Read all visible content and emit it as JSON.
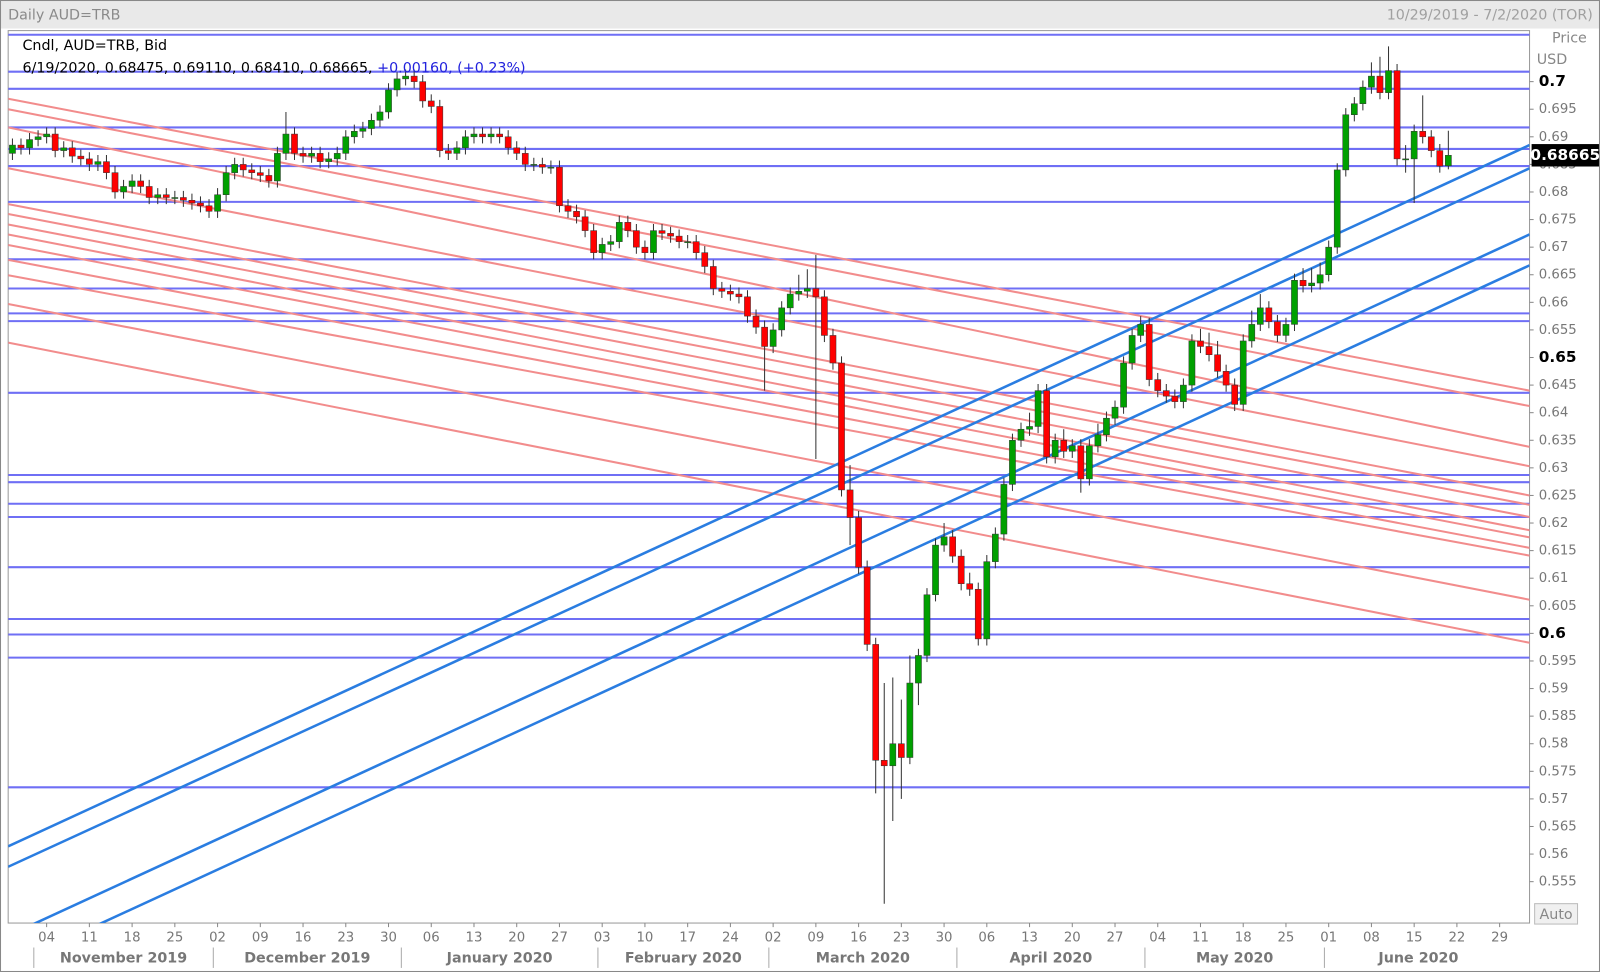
{
  "chart_data": {
    "type": "candlestick",
    "title": "Daily AUD=TRB",
    "date_range": "10/29/2019 - 7/2/2020 (TOR)",
    "legend_title": "Cndl, AUD=TRB, Bid",
    "legend_values": "6/19/2020, 0.68475, 0.69110, 0.68410, 0.68665,",
    "legend_change": "+0.00160, (+0.23%)",
    "axis_title": "Price",
    "axis_unit": "USD",
    "scale_mode": "Auto",
    "up_color": "#00a000",
    "down_color": "#ff0000",
    "x": [
      "2019-10-29",
      "2019-10-30",
      "2019-10-31",
      "2019-11-01",
      "2019-11-04",
      "2019-11-05",
      "2019-11-06",
      "2019-11-07",
      "2019-11-08",
      "2019-11-11",
      "2019-11-12",
      "2019-11-13",
      "2019-11-14",
      "2019-11-15",
      "2019-11-18",
      "2019-11-19",
      "2019-11-20",
      "2019-11-21",
      "2019-11-22",
      "2019-11-25",
      "2019-11-26",
      "2019-11-27",
      "2019-11-28",
      "2019-11-29",
      "2019-12-02",
      "2019-12-03",
      "2019-12-04",
      "2019-12-05",
      "2019-12-06",
      "2019-12-09",
      "2019-12-10",
      "2019-12-11",
      "2019-12-12",
      "2019-12-13",
      "2019-12-16",
      "2019-12-17",
      "2019-12-18",
      "2019-12-19",
      "2019-12-20",
      "2019-12-23",
      "2019-12-24",
      "2019-12-25",
      "2019-12-26",
      "2019-12-27",
      "2019-12-30",
      "2019-12-31",
      "2020-01-01",
      "2020-01-02",
      "2020-01-03",
      "2020-01-06",
      "2020-01-07",
      "2020-01-08",
      "2020-01-09",
      "2020-01-10",
      "2020-01-13",
      "2020-01-14",
      "2020-01-15",
      "2020-01-16",
      "2020-01-17",
      "2020-01-20",
      "2020-01-21",
      "2020-01-22",
      "2020-01-23",
      "2020-01-24",
      "2020-01-27",
      "2020-01-28",
      "2020-01-29",
      "2020-01-30",
      "2020-01-31",
      "2020-02-03",
      "2020-02-04",
      "2020-02-05",
      "2020-02-06",
      "2020-02-07",
      "2020-02-10",
      "2020-02-11",
      "2020-02-12",
      "2020-02-13",
      "2020-02-14",
      "2020-02-17",
      "2020-02-18",
      "2020-02-19",
      "2020-02-20",
      "2020-02-21",
      "2020-02-24",
      "2020-02-25",
      "2020-02-26",
      "2020-02-27",
      "2020-02-28",
      "2020-03-02",
      "2020-03-03",
      "2020-03-04",
      "2020-03-05",
      "2020-03-06",
      "2020-03-09",
      "2020-03-10",
      "2020-03-11",
      "2020-03-12",
      "2020-03-13",
      "2020-03-16",
      "2020-03-17",
      "2020-03-18",
      "2020-03-19",
      "2020-03-20",
      "2020-03-23",
      "2020-03-24",
      "2020-03-25",
      "2020-03-26",
      "2020-03-27",
      "2020-03-30",
      "2020-03-31",
      "2020-04-01",
      "2020-04-02",
      "2020-04-03",
      "2020-04-06",
      "2020-04-07",
      "2020-04-08",
      "2020-04-09",
      "2020-04-10",
      "2020-04-13",
      "2020-04-14",
      "2020-04-15",
      "2020-04-16",
      "2020-04-17",
      "2020-04-20",
      "2020-04-21",
      "2020-04-22",
      "2020-04-23",
      "2020-04-24",
      "2020-04-27",
      "2020-04-28",
      "2020-04-29",
      "2020-04-30",
      "2020-05-01",
      "2020-05-04",
      "2020-05-05",
      "2020-05-06",
      "2020-05-07",
      "2020-05-08",
      "2020-05-11",
      "2020-05-12",
      "2020-05-13",
      "2020-05-14",
      "2020-05-15",
      "2020-05-18",
      "2020-05-19",
      "2020-05-20",
      "2020-05-21",
      "2020-05-22",
      "2020-05-25",
      "2020-05-26",
      "2020-05-27",
      "2020-05-28",
      "2020-05-29",
      "2020-06-01",
      "2020-06-02",
      "2020-06-03",
      "2020-06-04",
      "2020-06-05",
      "2020-06-08",
      "2020-06-09",
      "2020-06-10",
      "2020-06-11",
      "2020-06-12",
      "2020-06-15",
      "2020-06-16",
      "2020-06-17",
      "2020-06-18",
      "2020-06-19"
    ],
    "open": [
      0.687,
      0.6885,
      0.688,
      0.6895,
      0.69,
      0.6905,
      0.6875,
      0.688,
      0.6865,
      0.686,
      0.685,
      0.6855,
      0.6835,
      0.68,
      0.681,
      0.682,
      0.681,
      0.679,
      0.6795,
      0.679,
      0.679,
      0.6785,
      0.678,
      0.6775,
      0.6765,
      0.6795,
      0.6835,
      0.685,
      0.684,
      0.6835,
      0.683,
      0.682,
      0.687,
      0.6905,
      0.687,
      0.6865,
      0.687,
      0.6855,
      0.686,
      0.687,
      0.69,
      0.691,
      0.6915,
      0.693,
      0.6945,
      0.6985,
      0.7005,
      0.701,
      0.7,
      0.6965,
      0.6955,
      0.6875,
      0.687,
      0.688,
      0.69,
      0.6905,
      0.69,
      0.6905,
      0.69,
      0.688,
      0.687,
      0.685,
      0.685,
      0.6845,
      0.6845,
      0.6775,
      0.6765,
      0.6755,
      0.673,
      0.669,
      0.6705,
      0.671,
      0.6745,
      0.673,
      0.67,
      0.669,
      0.673,
      0.6725,
      0.672,
      0.671,
      0.671,
      0.669,
      0.6665,
      0.6625,
      0.662,
      0.6615,
      0.661,
      0.6575,
      0.6555,
      0.652,
      0.655,
      0.659,
      0.6615,
      0.662,
      0.6625,
      0.661,
      0.654,
      0.649,
      0.626,
      0.621,
      0.612,
      0.598,
      0.577,
      0.576,
      0.58,
      0.5775,
      0.591,
      0.596,
      0.607,
      0.616,
      0.6175,
      0.614,
      0.609,
      0.608,
      0.599,
      0.613,
      0.618,
      0.627,
      0.635,
      0.637,
      0.6375,
      0.644,
      0.632,
      0.635,
      0.633,
      0.634,
      0.628,
      0.634,
      0.636,
      0.639,
      0.641,
      0.649,
      0.654,
      0.656,
      0.646,
      0.644,
      0.643,
      0.642,
      0.645,
      0.653,
      0.652,
      0.6505,
      0.6475,
      0.645,
      0.6415,
      0.653,
      0.656,
      0.659,
      0.6565,
      0.654,
      0.656,
      0.664,
      0.663,
      0.6635,
      0.665,
      0.67,
      0.684,
      0.694,
      0.696,
      0.699,
      0.701,
      0.698,
      0.702,
      0.686,
      0.686,
      0.691,
      0.69,
      0.6875,
      0.68475
    ],
    "high": [
      0.6897,
      0.6897,
      0.6907,
      0.6912,
      0.6917,
      0.6917,
      0.6892,
      0.6892,
      0.6877,
      0.6872,
      0.6867,
      0.6867,
      0.6847,
      0.6822,
      0.6832,
      0.6832,
      0.6822,
      0.6807,
      0.6807,
      0.6802,
      0.6802,
      0.6797,
      0.6792,
      0.6787,
      0.6807,
      0.6847,
      0.6862,
      0.6862,
      0.6852,
      0.6847,
      0.6842,
      0.6882,
      0.6945,
      0.6917,
      0.6882,
      0.6882,
      0.6882,
      0.6872,
      0.6882,
      0.6912,
      0.6922,
      0.6927,
      0.6942,
      0.6957,
      0.6997,
      0.7017,
      0.7022,
      0.7022,
      0.7012,
      0.6977,
      0.6967,
      0.6887,
      0.6892,
      0.6912,
      0.6917,
      0.6917,
      0.6917,
      0.6917,
      0.6912,
      0.6892,
      0.6882,
      0.6862,
      0.6862,
      0.6857,
      0.6857,
      0.6787,
      0.6777,
      0.6767,
      0.6742,
      0.6717,
      0.6722,
      0.6757,
      0.6757,
      0.6742,
      0.6712,
      0.6742,
      0.6742,
      0.6737,
      0.6732,
      0.6722,
      0.6722,
      0.6702,
      0.6677,
      0.6637,
      0.6632,
      0.6627,
      0.6622,
      0.6587,
      0.6567,
      0.6562,
      0.6602,
      0.6627,
      0.665,
      0.666,
      0.6686,
      0.6622,
      0.6552,
      0.6502,
      0.6305,
      0.6222,
      0.6132,
      0.5992,
      0.591,
      0.592,
      0.588,
      0.596,
      0.5972,
      0.6082,
      0.6172,
      0.62,
      0.6187,
      0.6152,
      0.611,
      0.6092,
      0.6142,
      0.6192,
      0.6282,
      0.6362,
      0.6382,
      0.64,
      0.6452,
      0.6452,
      0.6362,
      0.637,
      0.6352,
      0.6352,
      0.6352,
      0.638,
      0.6402,
      0.6422,
      0.6502,
      0.6552,
      0.6575,
      0.6572,
      0.6472,
      0.6452,
      0.6442,
      0.6462,
      0.6542,
      0.6552,
      0.6545,
      0.653,
      0.6487,
      0.6462,
      0.6542,
      0.6585,
      0.6615,
      0.6602,
      0.6577,
      0.6572,
      0.6652,
      0.6662,
      0.6662,
      0.6672,
      0.6712,
      0.6852,
      0.6952,
      0.6972,
      0.7002,
      0.7035,
      0.7045,
      0.7064,
      0.7032,
      0.6885,
      0.6922,
      0.6975,
      0.6912,
      0.6887,
      0.6911
    ],
    "low": [
      0.6858,
      0.6868,
      0.6868,
      0.6883,
      0.6888,
      0.6863,
      0.6863,
      0.6853,
      0.6848,
      0.6838,
      0.6838,
      0.6823,
      0.6788,
      0.6788,
      0.6798,
      0.6798,
      0.6778,
      0.6778,
      0.6778,
      0.6778,
      0.6773,
      0.6768,
      0.6763,
      0.6753,
      0.6753,
      0.6783,
      0.6823,
      0.6828,
      0.6823,
      0.6818,
      0.6808,
      0.6808,
      0.6858,
      0.6858,
      0.6853,
      0.6853,
      0.6843,
      0.6843,
      0.6848,
      0.6858,
      0.6888,
      0.6898,
      0.6903,
      0.6918,
      0.6933,
      0.6973,
      0.6993,
      0.6988,
      0.6953,
      0.6943,
      0.6863,
      0.6858,
      0.6858,
      0.6868,
      0.6888,
      0.6888,
      0.6888,
      0.6888,
      0.6868,
      0.6858,
      0.6838,
      0.6838,
      0.6833,
      0.6833,
      0.6763,
      0.6753,
      0.6743,
      0.6718,
      0.6678,
      0.6678,
      0.6693,
      0.6698,
      0.6718,
      0.6688,
      0.6678,
      0.6678,
      0.6713,
      0.6708,
      0.6698,
      0.6698,
      0.6678,
      0.6653,
      0.6613,
      0.6608,
      0.6603,
      0.6598,
      0.6563,
      0.6543,
      0.644,
      0.6508,
      0.6538,
      0.6578,
      0.6603,
      0.6608,
      0.6316,
      0.6528,
      0.6478,
      0.6248,
      0.616,
      0.6108,
      0.5968,
      0.571,
      0.551,
      0.566,
      0.57,
      0.5763,
      0.587,
      0.5948,
      0.6058,
      0.6148,
      0.6128,
      0.6078,
      0.6068,
      0.5978,
      0.5978,
      0.6118,
      0.6168,
      0.6258,
      0.6338,
      0.6358,
      0.6363,
      0.6308,
      0.6308,
      0.6318,
      0.6318,
      0.6255,
      0.6268,
      0.6328,
      0.6348,
      0.6378,
      0.6398,
      0.6478,
      0.6528,
      0.6448,
      0.6428,
      0.6418,
      0.6408,
      0.6408,
      0.6438,
      0.6508,
      0.6493,
      0.6463,
      0.6438,
      0.6403,
      0.6403,
      0.6518,
      0.6548,
      0.6553,
      0.6528,
      0.6528,
      0.6548,
      0.6618,
      0.6618,
      0.6623,
      0.6638,
      0.6688,
      0.6828,
      0.6928,
      0.6948,
      0.6978,
      0.6968,
      0.6968,
      0.6848,
      0.6835,
      0.678,
      0.6888,
      0.6863,
      0.6835,
      0.6841
    ],
    "close": [
      0.6885,
      0.688,
      0.6895,
      0.69,
      0.6905,
      0.6875,
      0.688,
      0.6865,
      0.686,
      0.685,
      0.6855,
      0.6835,
      0.68,
      0.681,
      0.682,
      0.681,
      0.679,
      0.6795,
      0.679,
      0.679,
      0.6785,
      0.678,
      0.6775,
      0.6765,
      0.6795,
      0.6835,
      0.685,
      0.684,
      0.6835,
      0.683,
      0.682,
      0.687,
      0.6905,
      0.687,
      0.6865,
      0.687,
      0.6855,
      0.686,
      0.687,
      0.69,
      0.691,
      0.6915,
      0.693,
      0.6945,
      0.6985,
      0.7005,
      0.701,
      0.7,
      0.6965,
      0.6955,
      0.6875,
      0.687,
      0.688,
      0.69,
      0.6905,
      0.69,
      0.6905,
      0.69,
      0.688,
      0.687,
      0.685,
      0.685,
      0.6845,
      0.6845,
      0.6775,
      0.6765,
      0.6755,
      0.673,
      0.669,
      0.6705,
      0.671,
      0.6745,
      0.673,
      0.67,
      0.669,
      0.673,
      0.6725,
      0.672,
      0.671,
      0.671,
      0.669,
      0.6665,
      0.6625,
      0.662,
      0.6615,
      0.661,
      0.6575,
      0.6555,
      0.652,
      0.655,
      0.659,
      0.6615,
      0.662,
      0.6625,
      0.661,
      0.654,
      0.649,
      0.626,
      0.621,
      0.612,
      0.598,
      0.577,
      0.576,
      0.58,
      0.5775,
      0.591,
      0.596,
      0.607,
      0.616,
      0.6175,
      0.614,
      0.609,
      0.608,
      0.599,
      0.613,
      0.618,
      0.627,
      0.635,
      0.637,
      0.6375,
      0.644,
      0.632,
      0.635,
      0.633,
      0.634,
      0.628,
      0.634,
      0.636,
      0.639,
      0.641,
      0.649,
      0.654,
      0.656,
      0.646,
      0.644,
      0.643,
      0.642,
      0.645,
      0.653,
      0.652,
      0.6505,
      0.6475,
      0.645,
      0.6415,
      0.653,
      0.656,
      0.659,
      0.6565,
      0.654,
      0.656,
      0.664,
      0.663,
      0.6635,
      0.665,
      0.67,
      0.684,
      0.694,
      0.696,
      0.699,
      0.701,
      0.698,
      0.702,
      0.686,
      0.686,
      0.691,
      0.69,
      0.6875,
      0.6847,
      0.68665
    ],
    "xlim": [
      "2019-10-29",
      "2020-07-02"
    ],
    "xticks": [
      {
        "value": "2019-11-04",
        "label": "04"
      },
      {
        "value": "2019-11-11",
        "label": "11"
      },
      {
        "value": "2019-11-18",
        "label": "18"
      },
      {
        "value": "2019-11-25",
        "label": "25"
      },
      {
        "value": "2019-12-02",
        "label": "02"
      },
      {
        "value": "2019-12-09",
        "label": "09"
      },
      {
        "value": "2019-12-16",
        "label": "16"
      },
      {
        "value": "2019-12-23",
        "label": "23"
      },
      {
        "value": "2019-12-30",
        "label": "30"
      },
      {
        "value": "2020-01-06",
        "label": "06"
      },
      {
        "value": "2020-01-13",
        "label": "13"
      },
      {
        "value": "2020-01-20",
        "label": "20"
      },
      {
        "value": "2020-01-27",
        "label": "27"
      },
      {
        "value": "2020-02-03",
        "label": "03"
      },
      {
        "value": "2020-02-10",
        "label": "10"
      },
      {
        "value": "2020-02-17",
        "label": "17"
      },
      {
        "value": "2020-02-24",
        "label": "24"
      },
      {
        "value": "2020-03-02",
        "label": "02"
      },
      {
        "value": "2020-03-09",
        "label": "09"
      },
      {
        "value": "2020-03-16",
        "label": "16"
      },
      {
        "value": "2020-03-23",
        "label": "23"
      },
      {
        "value": "2020-03-30",
        "label": "30"
      },
      {
        "value": "2020-04-06",
        "label": "06"
      },
      {
        "value": "2020-04-13",
        "label": "13"
      },
      {
        "value": "2020-04-20",
        "label": "20"
      },
      {
        "value": "2020-04-27",
        "label": "27"
      },
      {
        "value": "2020-05-04",
        "label": "04"
      },
      {
        "value": "2020-05-11",
        "label": "11"
      },
      {
        "value": "2020-05-18",
        "label": "18"
      },
      {
        "value": "2020-05-25",
        "label": "25"
      },
      {
        "value": "2020-06-01",
        "label": "01"
      },
      {
        "value": "2020-06-08",
        "label": "08"
      },
      {
        "value": "2020-06-15",
        "label": "15"
      },
      {
        "value": "2020-06-22",
        "label": "22"
      },
      {
        "value": "2020-06-29",
        "label": "29"
      }
    ],
    "month_labels": [
      {
        "value": "2019-11",
        "label": "November 2019"
      },
      {
        "value": "2019-12",
        "label": "December 2019"
      },
      {
        "value": "2020-01",
        "label": "January 2020"
      },
      {
        "value": "2020-02",
        "label": "February 2020"
      },
      {
        "value": "2020-03",
        "label": "March 2020"
      },
      {
        "value": "2020-04",
        "label": "April 2020"
      },
      {
        "value": "2020-05",
        "label": "May 2020"
      },
      {
        "value": "2020-06",
        "label": "June 2020"
      }
    ],
    "ylim": [
      0.5475,
      0.70925
    ],
    "yticks": [
      0.555,
      0.56,
      0.565,
      0.57,
      0.575,
      0.58,
      0.585,
      0.59,
      0.595,
      0.6,
      0.605,
      0.61,
      0.615,
      0.62,
      0.625,
      0.63,
      0.635,
      0.64,
      0.645,
      0.65,
      0.655,
      0.66,
      0.665,
      0.67,
      0.675,
      0.68,
      0.685,
      0.69,
      0.695,
      0.7
    ],
    "horizontal_lines": {
      "color": "#6f6ff5",
      "values": [
        0.7085,
        0.7018,
        0.6987,
        0.6917,
        0.6878,
        0.6847,
        0.6782,
        0.6678,
        0.6625,
        0.658,
        0.6566,
        0.6436,
        0.6287,
        0.6274,
        0.6235,
        0.6211,
        0.612,
        0.6026,
        0.5998,
        0.5956,
        0.5721
      ]
    },
    "red_trendlines": {
      "color": "#f28c8c",
      "lines": [
        [
          0.6969,
          0.644
        ],
        [
          0.695,
          0.6412
        ],
        [
          0.6917,
          0.6338
        ],
        [
          0.6843,
          0.6303
        ],
        [
          0.6778,
          0.625
        ],
        [
          0.676,
          0.6233
        ],
        [
          0.6741,
          0.6211
        ],
        [
          0.6723,
          0.6187
        ],
        [
          0.6704,
          0.6174
        ],
        [
          0.6677,
          0.6155
        ],
        [
          0.6649,
          0.6141
        ],
        [
          0.6597,
          0.6061
        ],
        [
          0.6527,
          0.5983
        ]
      ]
    },
    "blue_trendlines": {
      "color": "#2a7de1",
      "lines": [
        [
          0.5614,
          0.6885
        ],
        [
          0.5577,
          0.6843
        ],
        [
          0.5452,
          0.6723
        ],
        [
          0.5397,
          0.6667
        ]
      ]
    }
  }
}
